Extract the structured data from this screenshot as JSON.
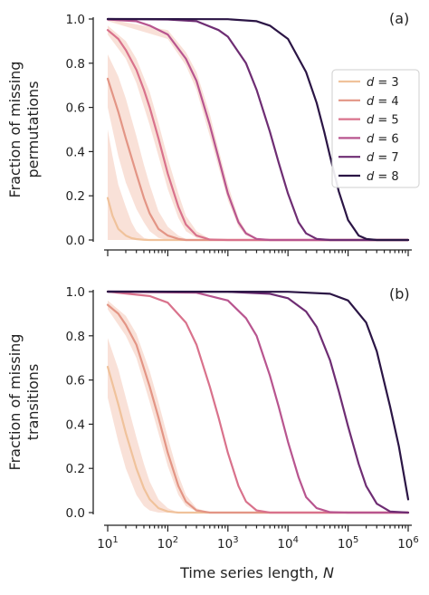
{
  "colors": {
    "d3": "#f0c29b",
    "d4": "#e39585",
    "d5": "#d9728c",
    "d6": "#b8558f",
    "d7": "#6e2d73",
    "d8": "#2b1545",
    "band": "#f4c8b8"
  },
  "chart_data": [
    {
      "type": "line",
      "panel_label": "(a)",
      "ylabel_line1": "Fraction of missing",
      "ylabel_line2": "permutations",
      "xscale": "log",
      "xlim": [
        10,
        1000000
      ],
      "ylim": [
        0,
        1
      ],
      "yticks": [
        "0.0",
        "0.2",
        "0.4",
        "0.6",
        "0.8",
        "1.0"
      ],
      "legend": {
        "placement": "right",
        "entries": [
          "d = 3",
          "d = 4",
          "d = 5",
          "d = 6",
          "d = 7",
          "d = 8"
        ]
      },
      "series": [
        {
          "name": "d = 3",
          "color_key": "d3",
          "x": [
            10,
            12,
            15,
            20,
            25,
            30,
            40,
            50,
            60
          ],
          "y": [
            0.19,
            0.11,
            0.05,
            0.02,
            0.008,
            0.004,
            0.001,
            0.0,
            0.0
          ]
        },
        {
          "name": "d = 4",
          "color_key": "d4",
          "x": [
            10,
            15,
            20,
            30,
            40,
            50,
            70,
            100,
            150,
            200,
            300
          ],
          "y": [
            0.73,
            0.58,
            0.46,
            0.3,
            0.19,
            0.12,
            0.05,
            0.02,
            0.005,
            0.0,
            0.0
          ]
        },
        {
          "name": "d = 5",
          "color_key": "d5",
          "x": [
            10,
            15,
            20,
            30,
            40,
            50,
            70,
            100,
            150,
            200,
            300,
            500,
            1000
          ],
          "y": [
            0.95,
            0.91,
            0.86,
            0.77,
            0.68,
            0.6,
            0.46,
            0.3,
            0.15,
            0.07,
            0.02,
            0.002,
            0.0
          ]
        },
        {
          "name": "d = 6",
          "color_key": "d6",
          "x": [
            10,
            30,
            50,
            100,
            200,
            300,
            500,
            700,
            1000,
            1500,
            2000,
            3000,
            5000,
            10000
          ],
          "y": [
            0.998,
            0.99,
            0.97,
            0.93,
            0.82,
            0.72,
            0.52,
            0.37,
            0.21,
            0.08,
            0.03,
            0.005,
            0.0,
            0.0
          ]
        },
        {
          "name": "d = 7",
          "color_key": "d7",
          "x": [
            10,
            100,
            300,
            700,
            1000,
            2000,
            3000,
            5000,
            7000,
            10000,
            15000,
            20000,
            30000,
            50000,
            100000
          ],
          "y": [
            1.0,
            0.998,
            0.99,
            0.95,
            0.92,
            0.8,
            0.68,
            0.49,
            0.35,
            0.21,
            0.08,
            0.03,
            0.005,
            0.0,
            0.0
          ]
        },
        {
          "name": "d = 8",
          "color_key": "d8",
          "x": [
            10,
            1000,
            3000,
            5000,
            10000,
            20000,
            30000,
            40000,
            50000,
            70000,
            100000,
            150000,
            200000,
            300000,
            500000,
            1000000
          ],
          "y": [
            1.0,
            0.999,
            0.99,
            0.97,
            0.91,
            0.76,
            0.62,
            0.49,
            0.38,
            0.22,
            0.09,
            0.02,
            0.005,
            0.0,
            0.0,
            0.0
          ]
        }
      ],
      "bands": [
        {
          "series": "d = 3",
          "x": [
            10,
            12,
            15,
            20,
            25,
            30,
            40,
            50,
            60
          ],
          "lower": [
            0.0,
            0.0,
            0.0,
            0.0,
            0.0,
            0.0,
            0.0,
            0.0,
            0.0
          ],
          "upper": [
            0.5,
            0.38,
            0.25,
            0.15,
            0.08,
            0.04,
            0.01,
            0.003,
            0.0
          ]
        },
        {
          "series": "d = 4",
          "x": [
            10,
            15,
            20,
            30,
            40,
            50,
            70,
            100,
            150,
            200,
            300
          ],
          "lower": [
            0.6,
            0.38,
            0.26,
            0.14,
            0.08,
            0.04,
            0.01,
            0.0,
            0.0,
            0.0,
            0.0
          ],
          "upper": [
            0.84,
            0.74,
            0.64,
            0.47,
            0.34,
            0.25,
            0.13,
            0.06,
            0.02,
            0.005,
            0.0
          ]
        },
        {
          "series": "d = 5",
          "x": [
            10,
            20,
            30,
            50,
            70,
            100,
            150,
            200,
            300,
            500,
            1000
          ],
          "lower": [
            0.93,
            0.82,
            0.71,
            0.52,
            0.38,
            0.23,
            0.1,
            0.04,
            0.01,
            0.0,
            0.0
          ],
          "upper": [
            0.97,
            0.9,
            0.82,
            0.67,
            0.53,
            0.37,
            0.21,
            0.11,
            0.04,
            0.005,
            0.0
          ]
        },
        {
          "series": "d = 6",
          "x": [
            10,
            100,
            200,
            300,
            500,
            700,
            1000,
            1500,
            2000,
            3000,
            5000
          ],
          "lower": [
            0.99,
            0.91,
            0.79,
            0.68,
            0.47,
            0.33,
            0.18,
            0.06,
            0.02,
            0.003,
            0.0
          ],
          "upper": [
            1.0,
            0.95,
            0.85,
            0.76,
            0.57,
            0.41,
            0.25,
            0.1,
            0.04,
            0.008,
            0.0
          ]
        }
      ]
    },
    {
      "type": "line",
      "panel_label": "(b)",
      "ylabel_line1": "Fraction of missing",
      "ylabel_line2": "transitions",
      "xlabel": "Time series length, N",
      "xscale": "log",
      "xlim": [
        10,
        1000000
      ],
      "ylim": [
        0,
        1
      ],
      "yticks": [
        "0.0",
        "0.2",
        "0.4",
        "0.6",
        "0.8",
        "1.0"
      ],
      "xticks": [
        {
          "base": "10",
          "exp": "1"
        },
        {
          "base": "10",
          "exp": "2"
        },
        {
          "base": "10",
          "exp": "3"
        },
        {
          "base": "10",
          "exp": "4"
        },
        {
          "base": "10",
          "exp": "5"
        },
        {
          "base": "10",
          "exp": "6"
        }
      ],
      "series": [
        {
          "name": "d = 3",
          "color_key": "d3",
          "x": [
            10,
            15,
            20,
            30,
            40,
            50,
            70,
            100,
            150
          ],
          "y": [
            0.66,
            0.49,
            0.36,
            0.2,
            0.11,
            0.06,
            0.02,
            0.005,
            0.0
          ]
        },
        {
          "name": "d = 4",
          "color_key": "d4",
          "x": [
            10,
            15,
            20,
            30,
            50,
            70,
            100,
            150,
            200,
            300,
            500,
            1000
          ],
          "y": [
            0.94,
            0.9,
            0.85,
            0.76,
            0.57,
            0.43,
            0.27,
            0.12,
            0.05,
            0.01,
            0.0,
            0.0
          ]
        },
        {
          "name": "d = 5",
          "color_key": "d5",
          "x": [
            10,
            50,
            100,
            200,
            300,
            500,
            700,
            1000,
            1500,
            2000,
            3000,
            5000,
            10000
          ],
          "y": [
            1.0,
            0.98,
            0.95,
            0.86,
            0.76,
            0.57,
            0.43,
            0.27,
            0.12,
            0.05,
            0.01,
            0.0,
            0.0
          ]
        },
        {
          "name": "d = 6",
          "color_key": "d6",
          "x": [
            10,
            300,
            1000,
            2000,
            3000,
            5000,
            7000,
            10000,
            15000,
            20000,
            30000,
            50000,
            100000
          ],
          "y": [
            1.0,
            0.995,
            0.96,
            0.88,
            0.8,
            0.62,
            0.48,
            0.32,
            0.16,
            0.07,
            0.02,
            0.002,
            0.0
          ]
        },
        {
          "name": "d = 7",
          "color_key": "d7",
          "x": [
            10,
            1000,
            5000,
            10000,
            20000,
            30000,
            50000,
            70000,
            100000,
            150000,
            200000,
            300000,
            500000,
            1000000
          ],
          "y": [
            1.0,
            0.999,
            0.99,
            0.97,
            0.91,
            0.84,
            0.69,
            0.55,
            0.39,
            0.22,
            0.12,
            0.04,
            0.005,
            0.0
          ]
        },
        {
          "name": "d = 8",
          "color_key": "d8",
          "x": [
            10,
            10000,
            50000,
            100000,
            200000,
            300000,
            500000,
            700000,
            1000000
          ],
          "y": [
            1.0,
            0.999,
            0.99,
            0.96,
            0.86,
            0.73,
            0.48,
            0.3,
            0.06
          ]
        }
      ],
      "bands": [
        {
          "series": "d = 3",
          "x": [
            10,
            15,
            20,
            30,
            40,
            50,
            70,
            100,
            150
          ],
          "lower": [
            0.52,
            0.32,
            0.2,
            0.08,
            0.03,
            0.01,
            0.0,
            0.0,
            0.0
          ],
          "upper": [
            0.79,
            0.65,
            0.52,
            0.34,
            0.22,
            0.14,
            0.06,
            0.02,
            0.0
          ]
        },
        {
          "series": "d = 4",
          "x": [
            10,
            20,
            30,
            50,
            70,
            100,
            150,
            200,
            300,
            500
          ],
          "lower": [
            0.92,
            0.8,
            0.7,
            0.5,
            0.36,
            0.21,
            0.08,
            0.03,
            0.005,
            0.0
          ],
          "upper": [
            0.96,
            0.89,
            0.81,
            0.64,
            0.5,
            0.34,
            0.17,
            0.08,
            0.02,
            0.0
          ]
        }
      ]
    }
  ]
}
